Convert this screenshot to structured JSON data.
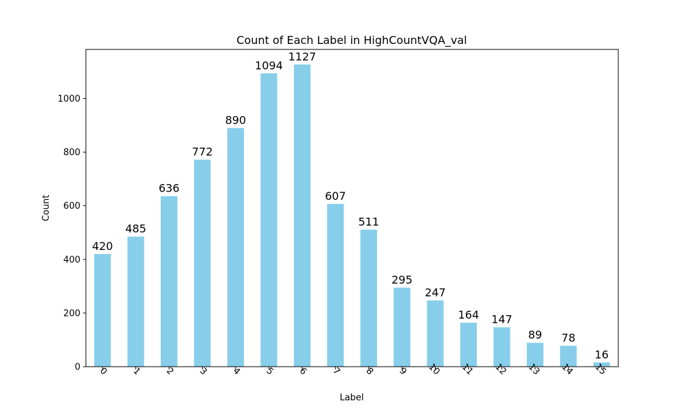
{
  "chart_data": {
    "type": "bar",
    "title": "Count of Each Label in HighCountVQA_val",
    "xlabel": "Label",
    "ylabel": "Count",
    "categories": [
      "0",
      "1",
      "2",
      "3",
      "4",
      "5",
      "6",
      "7",
      "8",
      "9",
      "10",
      "11",
      "12",
      "13",
      "14",
      "15"
    ],
    "values": [
      420,
      485,
      636,
      772,
      890,
      1094,
      1127,
      607,
      511,
      295,
      247,
      164,
      147,
      89,
      78,
      16
    ],
    "y_ticks": [
      0,
      200,
      400,
      600,
      800,
      1000
    ],
    "ylim": [
      0,
      1183
    ],
    "bar_color": "#87ceeb",
    "grid": false,
    "x_tick_rotation_deg": 45
  }
}
